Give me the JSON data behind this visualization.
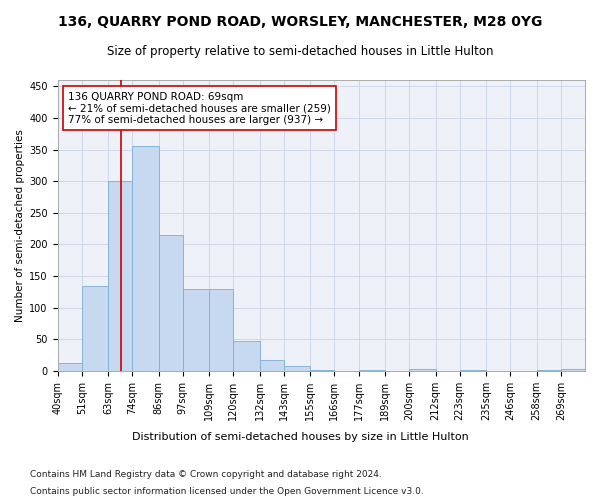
{
  "title1": "136, QUARRY POND ROAD, WORSLEY, MANCHESTER, M28 0YG",
  "title2": "Size of property relative to semi-detached houses in Little Hulton",
  "xlabel": "Distribution of semi-detached houses by size in Little Hulton",
  "ylabel": "Number of semi-detached properties",
  "footnote1": "Contains HM Land Registry data © Crown copyright and database right 2024.",
  "footnote2": "Contains public sector information licensed under the Open Government Licence v3.0.",
  "annotation_title": "136 QUARRY POND ROAD: 69sqm",
  "annotation_line1": "← 21% of semi-detached houses are smaller (259)",
  "annotation_line2": "77% of semi-detached houses are larger (937) →",
  "property_size": 69,
  "bar_color": "#c6d9f0",
  "bar_edge_color": "#7bafd4",
  "vline_color": "#cc0000",
  "annotation_box_edgecolor": "#cc0000",
  "grid_color": "#c8d4e8",
  "bg_color": "#eef2f8",
  "categories": [
    "40sqm",
    "51sqm",
    "63sqm",
    "74sqm",
    "86sqm",
    "97sqm",
    "109sqm",
    "120sqm",
    "132sqm",
    "143sqm",
    "155sqm",
    "166sqm",
    "177sqm",
    "189sqm",
    "200sqm",
    "212sqm",
    "223sqm",
    "235sqm",
    "246sqm",
    "258sqm",
    "269sqm"
  ],
  "values": [
    13,
    135,
    300,
    355,
    215,
    130,
    130,
    47,
    18,
    7,
    2,
    0,
    2,
    0,
    3,
    0,
    2,
    0,
    0,
    2,
    3
  ],
  "bin_edges": [
    40,
    51,
    63,
    74,
    86,
    97,
    109,
    120,
    132,
    143,
    155,
    166,
    177,
    189,
    200,
    212,
    223,
    235,
    246,
    258,
    269,
    280
  ],
  "ylim": [
    0,
    460
  ],
  "title1_fontsize": 10,
  "title2_fontsize": 8.5,
  "xlabel_fontsize": 8,
  "ylabel_fontsize": 7.5,
  "tick_fontsize": 7,
  "annotation_fontsize": 7.5,
  "footnote_fontsize": 6.5
}
